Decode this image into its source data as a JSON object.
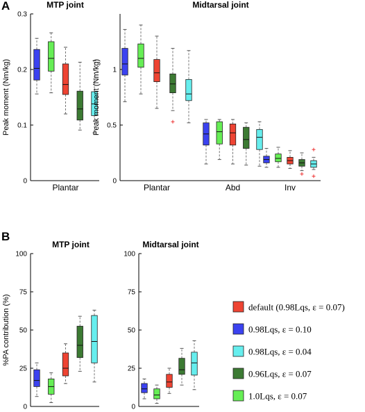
{
  "panel_labels": [
    "A",
    "B"
  ],
  "series_colors": {
    "0.98Lqs, ε = 0.10": "#3b42f0",
    "1.0Lqs, ε = 0.07": "#66ee55",
    "default (0.98Lqs, ε = 0.07)": "#ee4433",
    "0.96Lqs, ε = 0.07": "#3c7a33",
    "0.98Lqs, ε = 0.04": "#66eeee"
  },
  "legend": {
    "items": [
      {
        "color": "#ee4433",
        "label": "default (0.98Lqs, ε = 0.07)"
      },
      {
        "color": "#3b42f0",
        "label": "0.98Lqs, ε = 0.10"
      },
      {
        "color": "#66eeee",
        "label": "0.98Lqs, ε = 0.04"
      },
      {
        "color": "#3c7a33",
        "label": "0.96Lqs, ε = 0.07"
      },
      {
        "color": "#66ee55",
        "label": "1.0Lqs, ε = 0.07"
      }
    ]
  },
  "chart_data": [
    {
      "type": "box",
      "panel": "A",
      "title": "MTP joint",
      "ylabel": "Peak moment (Nm/kg)",
      "ylim": [
        0,
        0.3
      ],
      "yticks": [
        0,
        0.1,
        0.2,
        0.3
      ],
      "yticklabels": [
        "0",
        "0.1",
        "0.2",
        "0.3"
      ],
      "categories": [
        "Plantar"
      ],
      "series_order": [
        "0.98Lqs, ε = 0.10",
        "1.0Lqs, ε = 0.07",
        "default (0.98Lqs, ε = 0.07)",
        "0.96Lqs, ε = 0.07",
        "0.98Lqs, ε = 0.04"
      ],
      "boxes": [
        [
          {
            "whislo": 0.156,
            "q1": 0.181,
            "med": 0.202,
            "q3": 0.236,
            "whishi": 0.256,
            "fliers": []
          },
          {
            "whislo": 0.158,
            "q1": 0.197,
            "med": 0.22,
            "q3": 0.25,
            "whishi": 0.266,
            "fliers": []
          },
          {
            "whislo": 0.12,
            "q1": 0.155,
            "med": 0.173,
            "q3": 0.21,
            "whishi": 0.24,
            "fliers": []
          },
          {
            "whislo": 0.091,
            "q1": 0.109,
            "med": 0.129,
            "q3": 0.161,
            "whishi": 0.213,
            "fliers": []
          },
          {
            "whislo": 0.086,
            "q1": 0.117,
            "med": 0.138,
            "q3": 0.16,
            "whishi": 0.216,
            "fliers": []
          }
        ]
      ]
    },
    {
      "type": "box",
      "panel": "A",
      "title": "Midtarsal joint",
      "ylabel": "Peak moment (Nm/kg)",
      "ylim": [
        0,
        1.5
      ],
      "yticks": [
        0,
        0.5,
        1
      ],
      "yticklabels": [
        "0",
        "0.5",
        "1"
      ],
      "categories": [
        "Plantar",
        "Abd",
        "Inv"
      ],
      "series_order": [
        "0.98Lqs, ε = 0.10",
        "1.0Lqs, ε = 0.07",
        "default (0.98Lqs, ε = 0.07)",
        "0.96Lqs, ε = 0.07",
        "0.98Lqs, ε = 0.04"
      ],
      "boxes": [
        [
          {
            "whislo": 0.71,
            "q1": 0.95,
            "med": 1.05,
            "q3": 1.19,
            "whishi": 1.36,
            "fliers": []
          },
          {
            "whislo": 0.78,
            "q1": 1.02,
            "med": 1.1,
            "q3": 1.23,
            "whishi": 1.4,
            "fliers": []
          },
          {
            "whislo": 0.65,
            "q1": 0.89,
            "med": 0.97,
            "q3": 1.09,
            "whishi": 1.3,
            "fliers": []
          },
          {
            "whislo": 0.63,
            "q1": 0.79,
            "med": 0.87,
            "q3": 0.96,
            "whishi": 1.19,
            "fliers": [
              0.53
            ]
          },
          {
            "whislo": 0.52,
            "q1": 0.72,
            "med": 0.78,
            "q3": 0.91,
            "whishi": 1.17,
            "fliers": []
          }
        ],
        [
          {
            "whislo": 0.15,
            "q1": 0.32,
            "med": 0.42,
            "q3": 0.52,
            "whishi": 0.55,
            "fliers": []
          },
          {
            "whislo": 0.19,
            "q1": 0.33,
            "med": 0.44,
            "q3": 0.53,
            "whishi": 0.55,
            "fliers": []
          },
          {
            "whislo": 0.15,
            "q1": 0.32,
            "med": 0.43,
            "q3": 0.51,
            "whishi": 0.55,
            "fliers": []
          },
          {
            "whislo": 0.14,
            "q1": 0.29,
            "med": 0.37,
            "q3": 0.48,
            "whishi": 0.52,
            "fliers": []
          },
          {
            "whislo": 0.13,
            "q1": 0.28,
            "med": 0.39,
            "q3": 0.46,
            "whishi": 0.53,
            "fliers": []
          }
        ],
        [
          {
            "whislo": 0.12,
            "q1": 0.16,
            "med": 0.19,
            "q3": 0.22,
            "whishi": 0.29,
            "fliers": []
          },
          {
            "whislo": 0.12,
            "q1": 0.17,
            "med": 0.2,
            "q3": 0.24,
            "whishi": 0.3,
            "fliers": []
          },
          {
            "whislo": 0.11,
            "q1": 0.15,
            "med": 0.18,
            "q3": 0.21,
            "whishi": 0.27,
            "fliers": []
          },
          {
            "whislo": 0.09,
            "q1": 0.13,
            "med": 0.16,
            "q3": 0.19,
            "whishi": 0.25,
            "fliers": [
              0.06
            ]
          },
          {
            "whislo": 0.1,
            "q1": 0.12,
            "med": 0.15,
            "q3": 0.18,
            "whishi": 0.21,
            "fliers": [
              0.28,
              0.04
            ]
          }
        ]
      ]
    },
    {
      "type": "box",
      "panel": "B",
      "title": "MTP joint",
      "ylabel": "%PA contribution (%)",
      "ylim": [
        0,
        100
      ],
      "yticks": [
        0,
        25,
        50,
        75,
        100
      ],
      "yticklabels": [
        "0",
        "25",
        "50",
        "75",
        "100"
      ],
      "categories": [
        ""
      ],
      "series_order": [
        "0.98Lqs, ε = 0.10",
        "1.0Lqs, ε = 0.07",
        "default (0.98Lqs, ε = 0.07)",
        "0.96Lqs, ε = 0.07",
        "0.98Lqs, ε = 0.04"
      ],
      "boxes": [
        [
          {
            "whislo": 6.5,
            "q1": 13,
            "med": 17,
            "q3": 24,
            "whishi": 28.5,
            "fliers": []
          },
          {
            "whislo": 2.5,
            "q1": 8,
            "med": 13,
            "q3": 18,
            "whishi": 22,
            "fliers": []
          },
          {
            "whislo": 15,
            "q1": 20,
            "med": 25,
            "q3": 35,
            "whishi": 41,
            "fliers": []
          },
          {
            "whislo": 23,
            "q1": 32,
            "med": 40,
            "q3": 52.5,
            "whishi": 59,
            "fliers": []
          },
          {
            "whislo": 16,
            "q1": 28.5,
            "med": 42.5,
            "q3": 59.5,
            "whishi": 63,
            "fliers": []
          }
        ]
      ]
    },
    {
      "type": "box",
      "panel": "B",
      "title": "Midtarsal joint",
      "ylabel": "",
      "ylim": [
        0,
        100
      ],
      "yticks": [
        0,
        25,
        50,
        75,
        100
      ],
      "yticklabels": [
        "0",
        "25",
        "50",
        "75",
        "100"
      ],
      "categories": [
        ""
      ],
      "series_order": [
        "0.98Lqs, ε = 0.10",
        "1.0Lqs, ε = 0.07",
        "default (0.98Lqs, ε = 0.07)",
        "0.96Lqs, ε = 0.07",
        "0.98Lqs, ε = 0.04"
      ],
      "boxes": [
        [
          {
            "whislo": 5,
            "q1": 9,
            "med": 11.5,
            "q3": 15,
            "whishi": 18,
            "fliers": []
          },
          {
            "whislo": 2,
            "q1": 5,
            "med": 7.5,
            "q3": 11.5,
            "whishi": 14,
            "fliers": []
          },
          {
            "whislo": 8.5,
            "q1": 12.5,
            "med": 16,
            "q3": 21,
            "whishi": 25,
            "fliers": []
          },
          {
            "whislo": 14,
            "q1": 21,
            "med": 24,
            "q3": 31.5,
            "whishi": 38,
            "fliers": []
          },
          {
            "whislo": 11,
            "q1": 20.5,
            "med": 28.5,
            "q3": 35.5,
            "whishi": 43,
            "fliers": []
          }
        ]
      ]
    }
  ]
}
